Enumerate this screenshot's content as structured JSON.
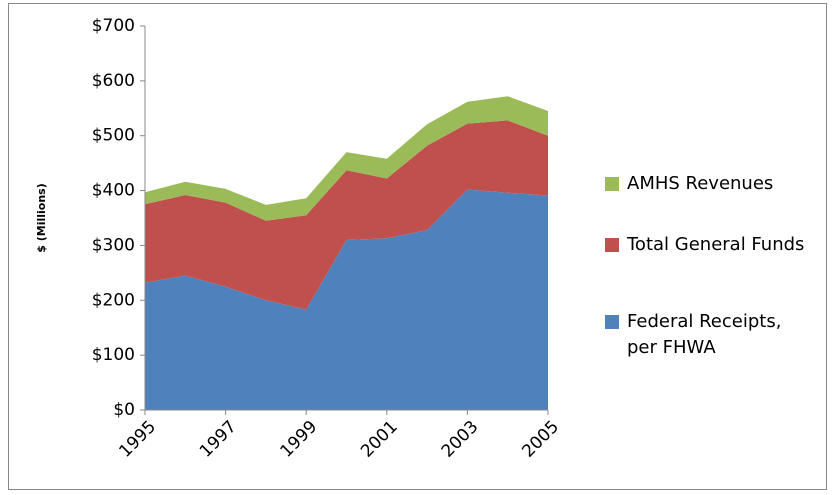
{
  "chart_data": {
    "type": "stacked-area",
    "y_label": "$ (Millions)",
    "x": [
      1995,
      1996,
      1997,
      1998,
      1999,
      2000,
      2001,
      2002,
      2003,
      2004,
      2005
    ],
    "xlim": [
      1995,
      2005
    ],
    "xticks": [
      1995,
      1997,
      1999,
      2001,
      2003,
      2005
    ],
    "ylim": [
      0,
      700
    ],
    "yticks": [
      {
        "value": 0,
        "label": "$0"
      },
      {
        "value": 100,
        "label": "$100"
      },
      {
        "value": 200,
        "label": "$200"
      },
      {
        "value": 300,
        "label": "$300"
      },
      {
        "value": 400,
        "label": "$400"
      },
      {
        "value": 500,
        "label": "$500"
      },
      {
        "value": 600,
        "label": "$600"
      },
      {
        "value": 700,
        "label": "$700"
      }
    ],
    "legend": "right",
    "series": [
      {
        "name": "Federal Receipts, per FHWA",
        "color": "#4f81bd",
        "values": [
          232,
          245,
          225,
          200,
          183,
          310,
          313,
          328,
          402,
          396,
          391
        ]
      },
      {
        "name": "Total General Funds",
        "color": "#c0504d",
        "values": [
          143,
          147,
          153,
          145,
          172,
          127,
          109,
          154,
          120,
          132,
          109
        ]
      },
      {
        "name": "AMHS Revenues",
        "color": "#9bbb59",
        "values": [
          22,
          24,
          25,
          29,
          31,
          33,
          36,
          39,
          40,
          44,
          45
        ]
      }
    ]
  }
}
